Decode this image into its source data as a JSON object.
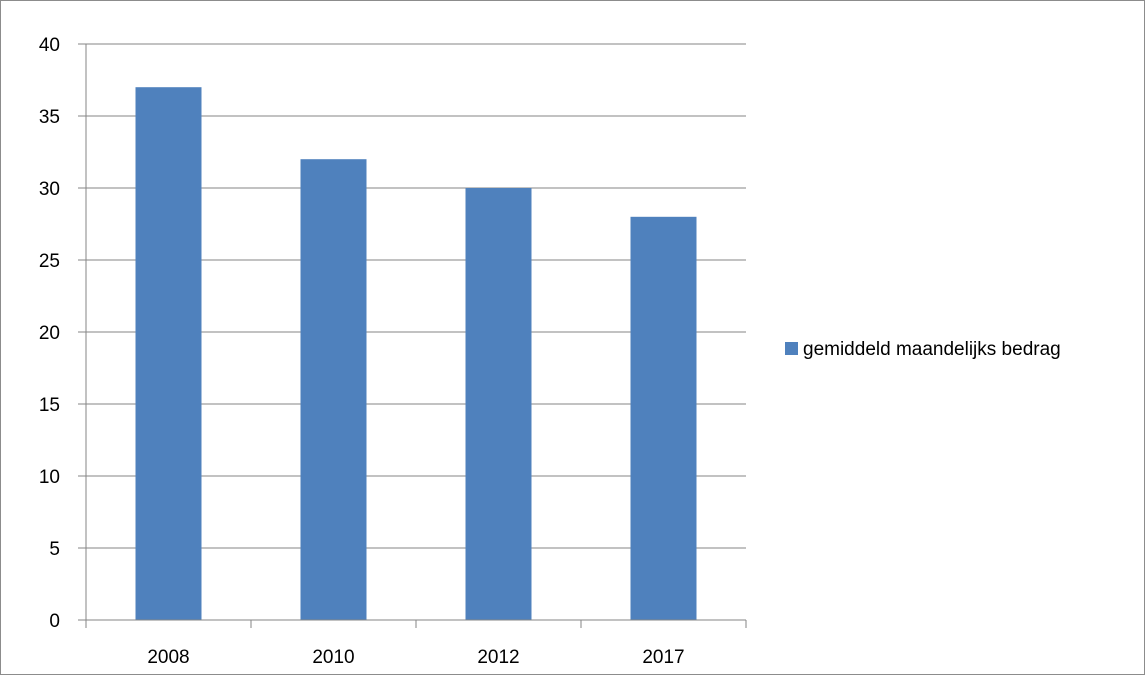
{
  "chart_data": {
    "type": "bar",
    "title": "",
    "xlabel": "",
    "ylabel": "",
    "categories": [
      "2008",
      "2010",
      "2012",
      "2017"
    ],
    "series": [
      {
        "name": "gemiddeld maandelijks bedrag",
        "values": [
          37,
          32,
          30,
          28
        ],
        "color": "#4f81bd"
      }
    ],
    "ylim": [
      0,
      40
    ],
    "yticks": [
      "0",
      "5",
      "10",
      "15",
      "20",
      "25",
      "30",
      "35",
      "40"
    ],
    "grid": true,
    "legend_position": "right"
  }
}
